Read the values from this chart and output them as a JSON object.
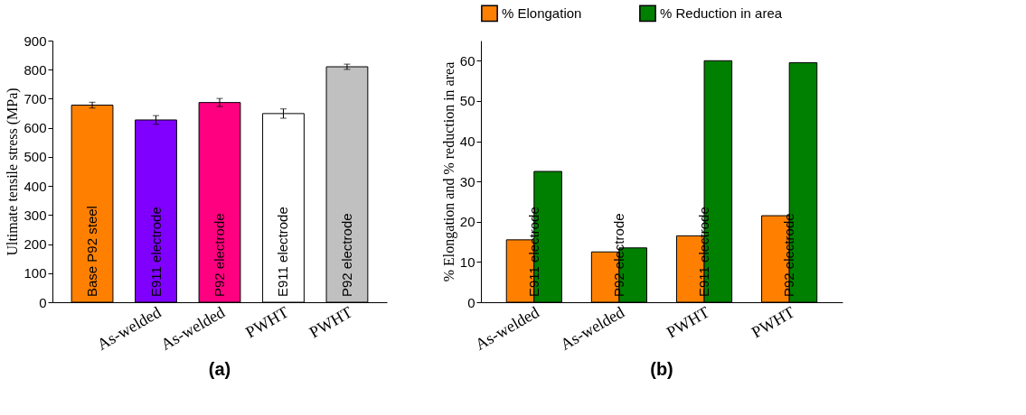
{
  "chart_data": [
    {
      "type": "bar",
      "title": "(a)",
      "ylabel": "Ultimate tensile stress (MPa)",
      "categories": [
        null,
        "As-welded",
        "As-welded",
        "PWHT",
        "PWHT"
      ],
      "values": [
        678,
        627,
        687,
        649,
        810
      ],
      "errors": [
        10,
        15,
        14,
        16,
        9
      ],
      "colors": [
        "#ff8000",
        "#8000ff",
        "#ff0080",
        "#ffffff",
        "#c0c0c0"
      ],
      "annotations": [
        "Base P92 steel",
        "E911 electrode",
        "P92 electrode",
        "E911 electrode",
        "P92 electrode"
      ],
      "ylim": [
        0,
        900
      ],
      "yticks": [
        0,
        100,
        200,
        300,
        400,
        500,
        600,
        700,
        800,
        900
      ],
      "grid": false
    },
    {
      "type": "bar",
      "title": "(b)",
      "ylabel": "% Elongation and % reduction in area",
      "categories": [
        "As-welded",
        "As-welded",
        "PWHT",
        "PWHT"
      ],
      "series": [
        {
          "name": "% Elongation",
          "color": "#ff8000",
          "values": [
            15.5,
            12.5,
            16.5,
            21.5
          ]
        },
        {
          "name": "% Reduction in area",
          "color": "#008000",
          "values": [
            32.5,
            13.5,
            60,
            59.5
          ]
        }
      ],
      "annotations": [
        "E911 electrode",
        "P92 electrode",
        "E911 electrode",
        "P92 electrode"
      ],
      "ylim": [
        0,
        65
      ],
      "yticks": [
        0,
        10,
        20,
        30,
        40,
        50,
        60
      ],
      "grid": false,
      "legend": "top"
    }
  ]
}
